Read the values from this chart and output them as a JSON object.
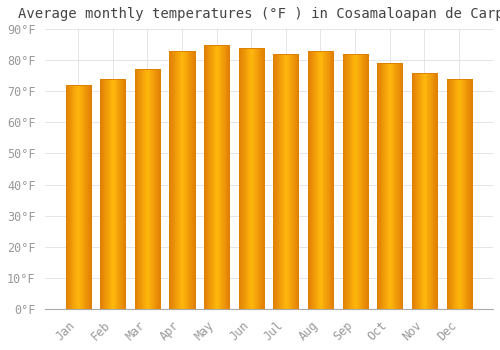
{
  "title": "Average monthly temperatures (°F ) in Cosamaloapan de Carpio",
  "months": [
    "Jan",
    "Feb",
    "Mar",
    "Apr",
    "May",
    "Jun",
    "Jul",
    "Aug",
    "Sep",
    "Oct",
    "Nov",
    "Dec"
  ],
  "values": [
    72,
    74,
    77,
    83,
    85,
    84,
    82,
    83,
    82,
    79,
    76,
    74
  ],
  "bar_color_center": "#FFB300",
  "bar_color_edge": "#E08000",
  "background_color": "#FFFFFF",
  "grid_color": "#E0E0E0",
  "text_color": "#999999",
  "ylim": [
    0,
    90
  ],
  "yticks": [
    0,
    10,
    20,
    30,
    40,
    50,
    60,
    70,
    80,
    90
  ],
  "title_fontsize": 10,
  "tick_fontsize": 8.5,
  "bar_width": 0.72
}
